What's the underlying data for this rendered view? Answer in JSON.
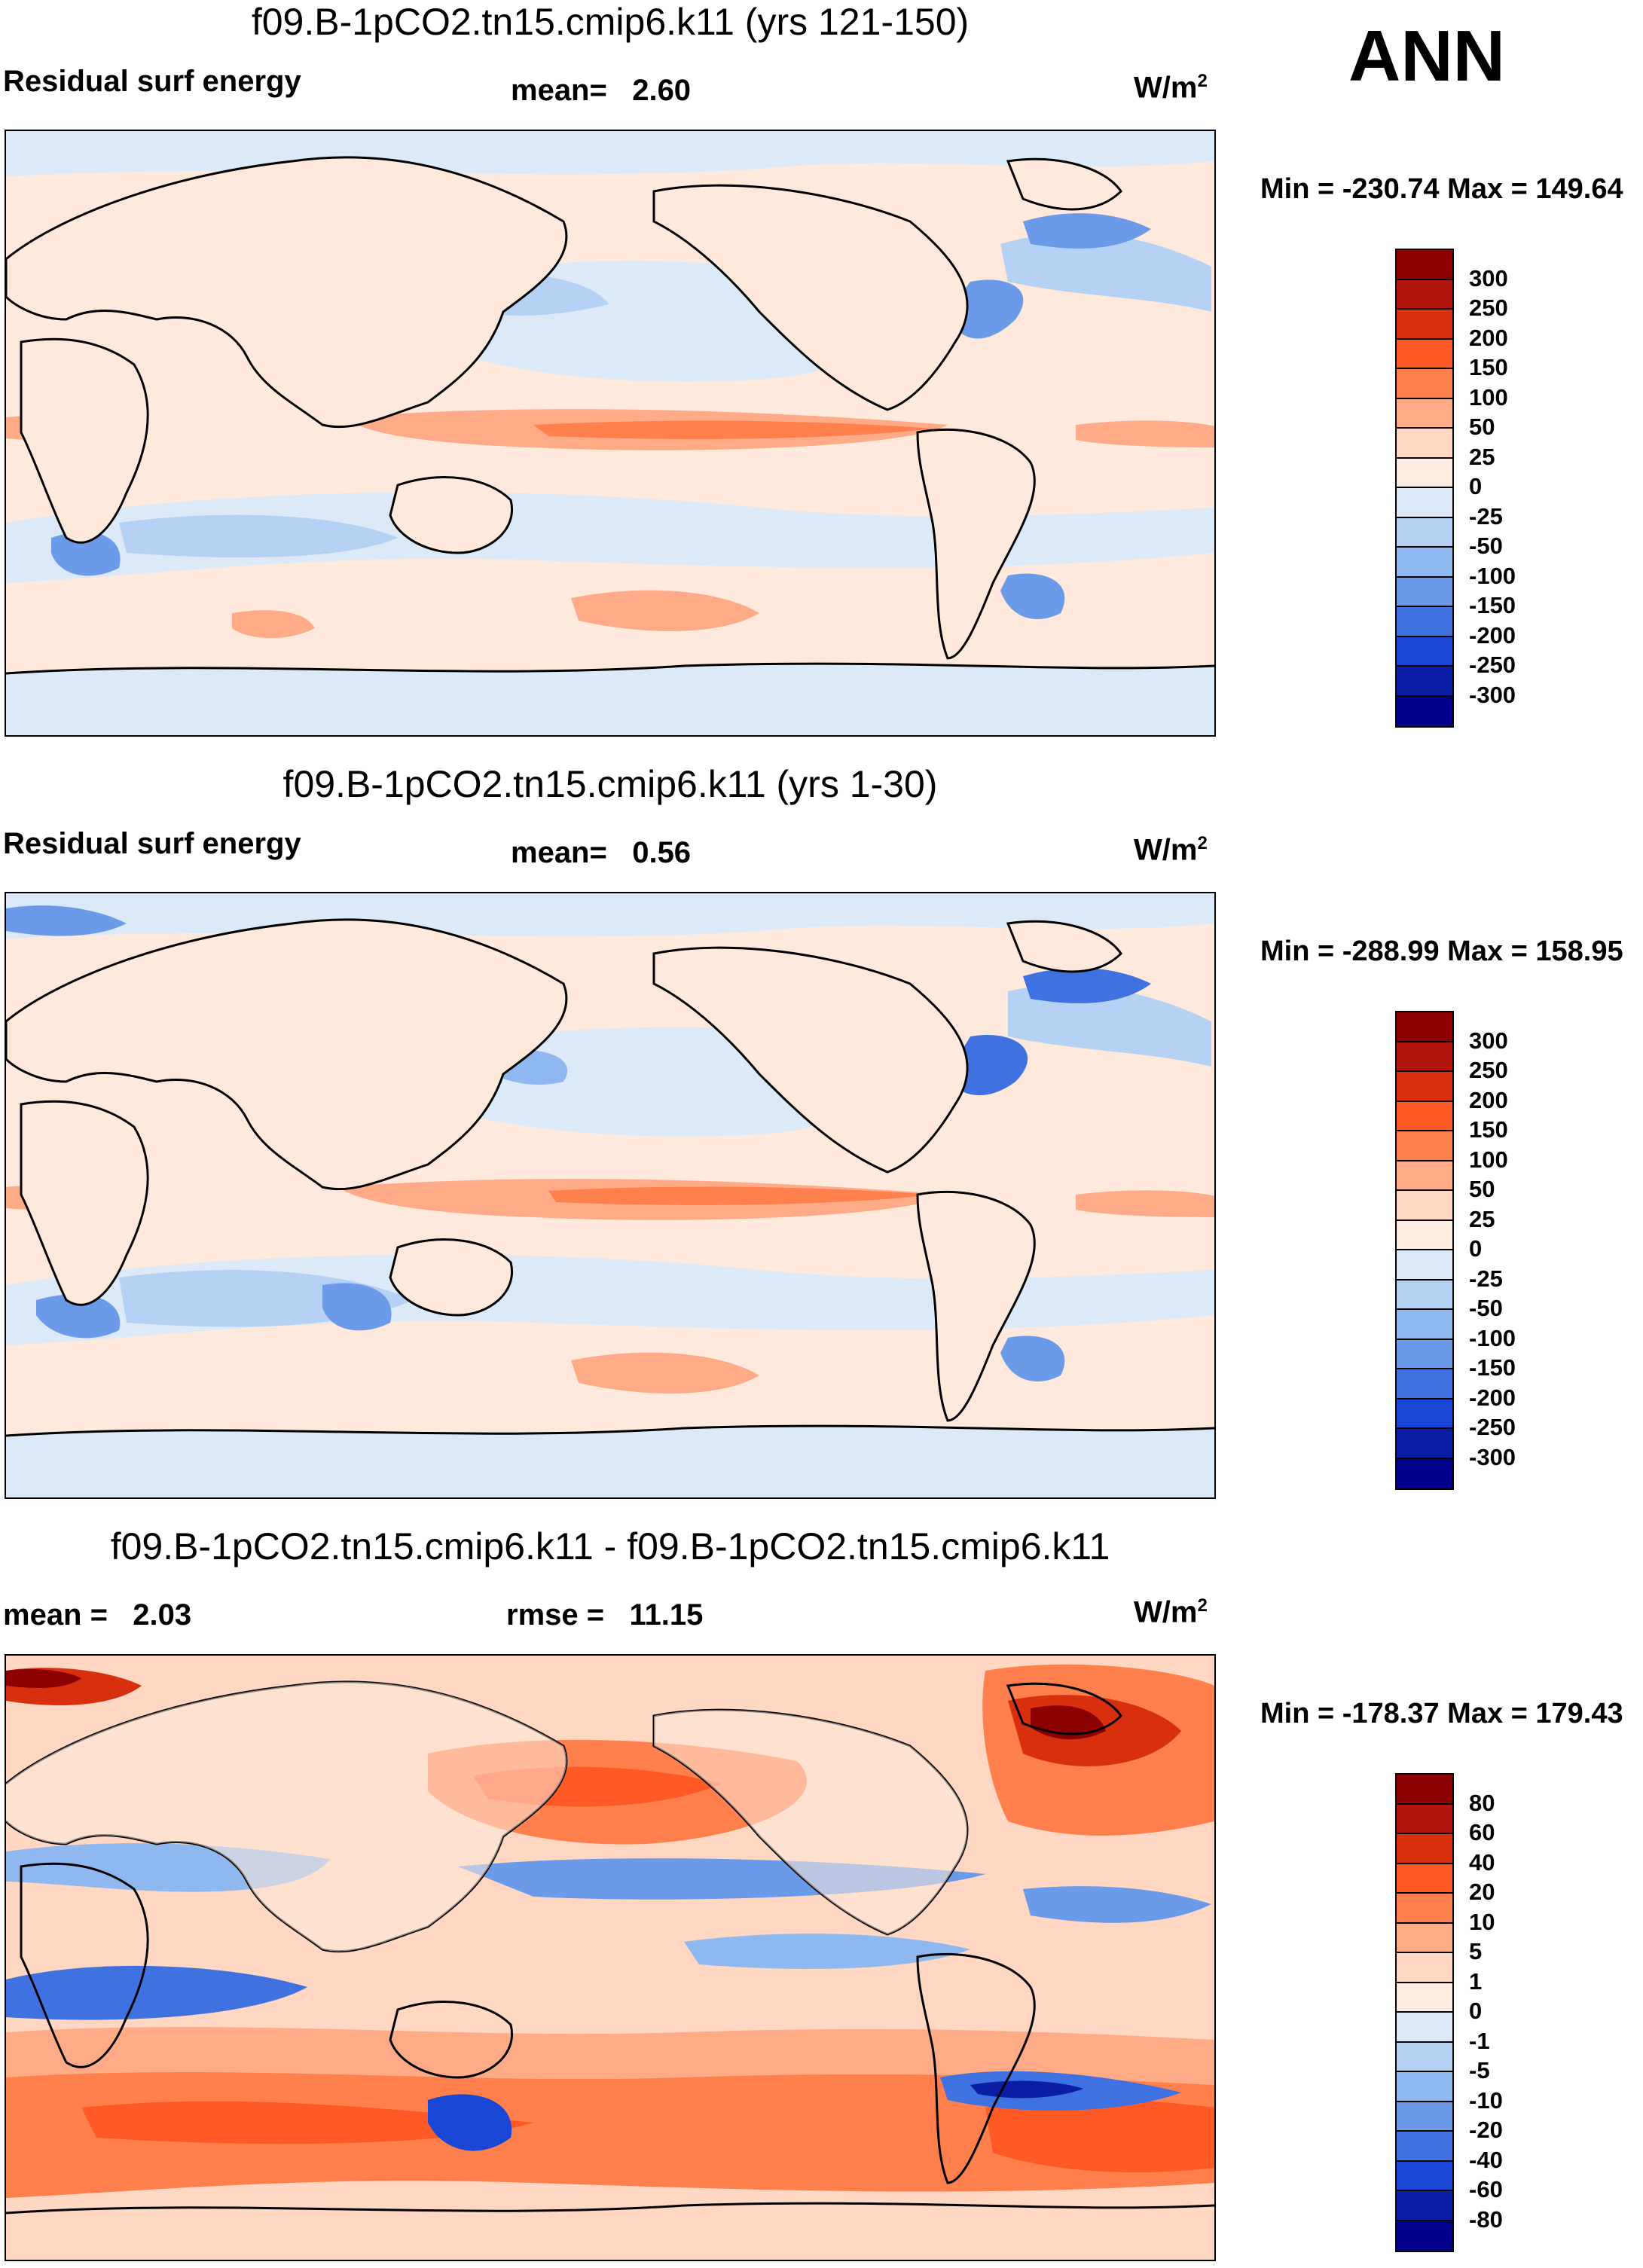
{
  "season": "ANN",
  "panels": [
    {
      "title": "f09.B-1pCO2.tn15.cmip6.k11 (yrs 121-150)",
      "left_label": "Residual surf energy",
      "stat_label": "mean=",
      "stat_value": "2.60",
      "units_base": "W/m",
      "units_exp": "2",
      "minmax": "Min = -230.74 Max = 149.64",
      "levels": [
        "300",
        "250",
        "200",
        "150",
        "100",
        "50",
        "25",
        "0",
        "-25",
        "-50",
        "-100",
        "-150",
        "-200",
        "-250",
        "-300"
      ],
      "colors": [
        "#8b0000",
        "#b3160f",
        "#d8300f",
        "#ff5a26",
        "#ff7f4d",
        "#ffab88",
        "#ffd7c2",
        "#ffece0",
        "#dbe9f9",
        "#b5d2f5",
        "#8fb8f0",
        "#6b9be8",
        "#3f72e0",
        "#1946d4",
        "#0a1ea3",
        "#00008b"
      ],
      "mean_value": 2.6,
      "min": -230.74,
      "max": 149.64
    },
    {
      "title": "f09.B-1pCO2.tn15.cmip6.k11 (yrs 1-30)",
      "left_label": "Residual surf energy",
      "stat_label": "mean=",
      "stat_value": "0.56",
      "units_base": "W/m",
      "units_exp": "2",
      "minmax": "Min = -288.99 Max = 158.95",
      "levels": [
        "300",
        "250",
        "200",
        "150",
        "100",
        "50",
        "25",
        "0",
        "-25",
        "-50",
        "-100",
        "-150",
        "-200",
        "-250",
        "-300"
      ],
      "colors": [
        "#8b0000",
        "#b3160f",
        "#d8300f",
        "#ff5a26",
        "#ff7f4d",
        "#ffab88",
        "#ffd7c2",
        "#ffece0",
        "#dbe9f9",
        "#b5d2f5",
        "#8fb8f0",
        "#6b9be8",
        "#3f72e0",
        "#1946d4",
        "#0a1ea3",
        "#00008b"
      ],
      "mean_value": 0.56,
      "min": -288.99,
      "max": 158.95
    },
    {
      "title": "f09.B-1pCO2.tn15.cmip6.k11 - f09.B-1pCO2.tn15.cmip6.k11",
      "left_label": "mean =   2.03",
      "stat_label": "rmse =",
      "stat_value": "11.15",
      "units_base": "W/m",
      "units_exp": "2",
      "minmax": "Min = -178.37 Max = 179.43",
      "levels": [
        "80",
        "60",
        "40",
        "20",
        "10",
        "5",
        "1",
        "0",
        "-1",
        "-5",
        "-10",
        "-20",
        "-40",
        "-60",
        "-80"
      ],
      "colors": [
        "#8b0000",
        "#b3160f",
        "#d8300f",
        "#ff5a26",
        "#ff7f4d",
        "#ffab88",
        "#ffd7c2",
        "#ffece0",
        "#dbe9f9",
        "#b5d2f5",
        "#8fb8f0",
        "#6b9be8",
        "#3f72e0",
        "#1946d4",
        "#0a1ea3",
        "#00008b"
      ],
      "mean_value": 2.03,
      "rmse": 11.15,
      "min": -178.37,
      "max": 179.43
    }
  ]
}
